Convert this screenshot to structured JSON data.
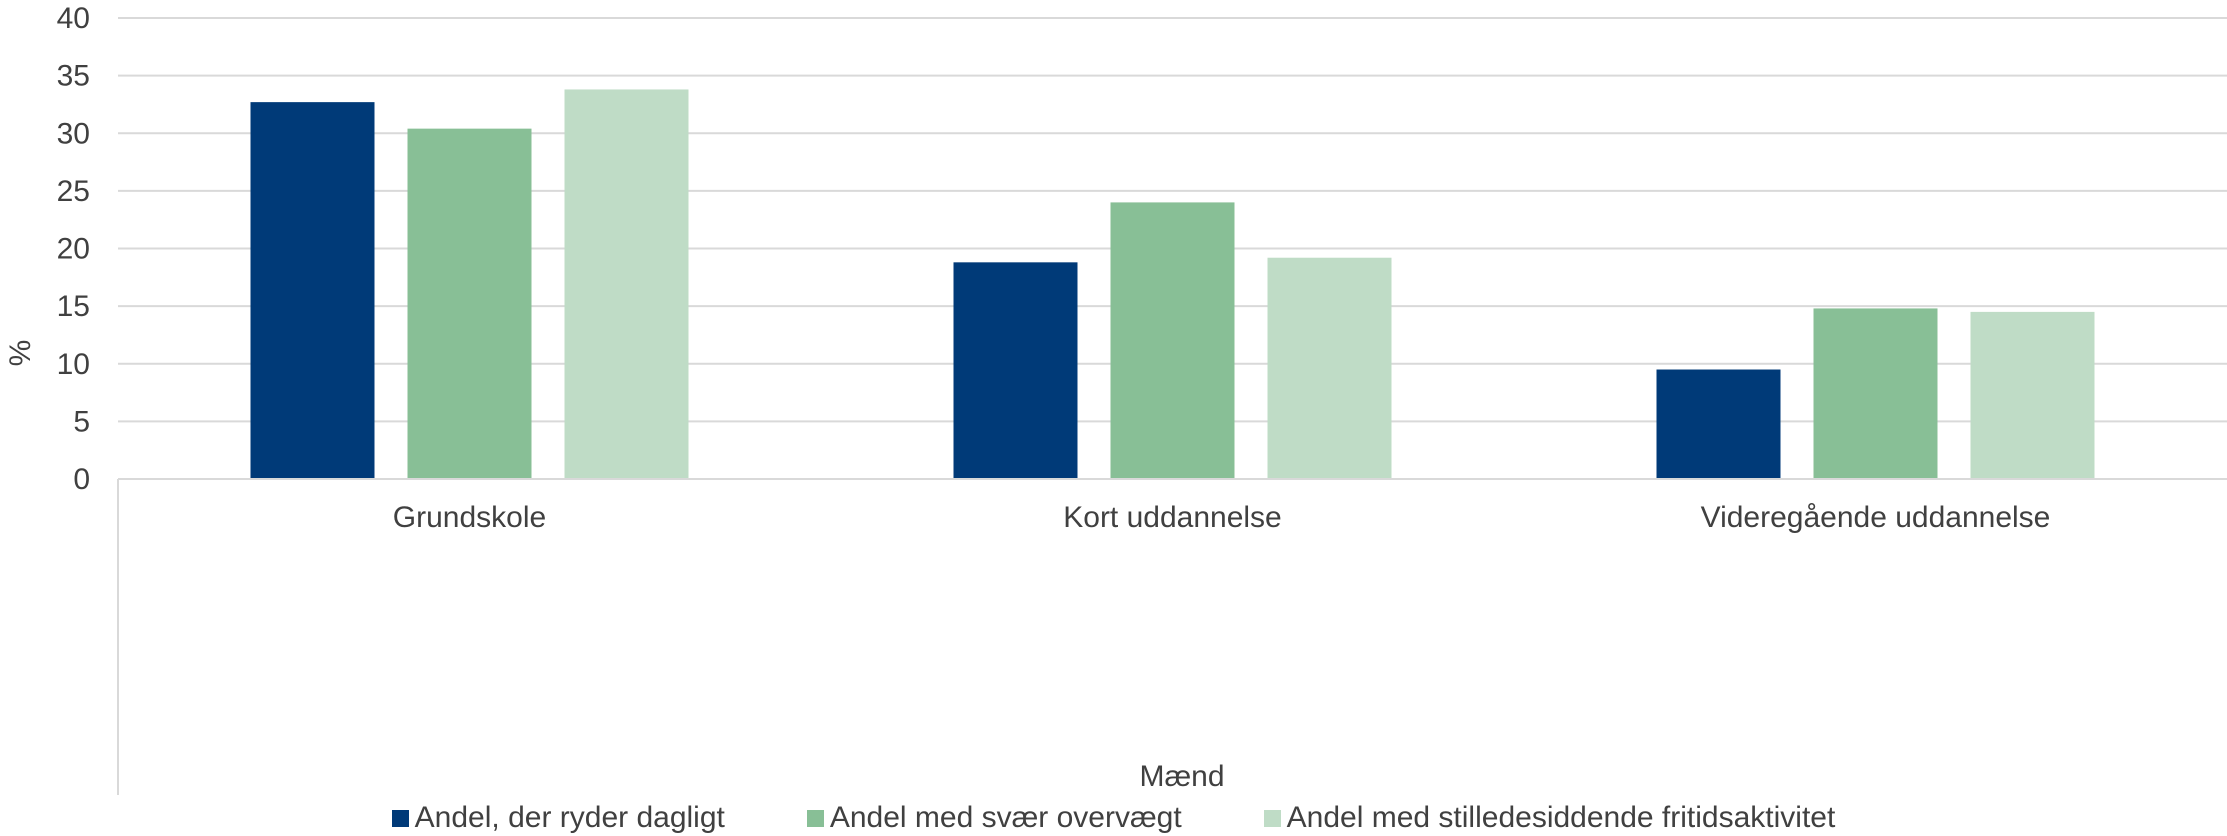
{
  "chart_data": {
    "type": "bar",
    "title": "",
    "xlabel": "Mænd",
    "ylabel": "%",
    "ylim": [
      0,
      40
    ],
    "yticks": [
      0,
      5,
      10,
      15,
      20,
      25,
      30,
      35,
      40
    ],
    "grid": true,
    "legend_position": "bottom",
    "categories": [
      "Grundskole",
      "Kort uddannelse",
      "Videregående uddannelse"
    ],
    "series": [
      {
        "name": "Andel, der ryder dagligt",
        "color": "#003a78",
        "values": [
          32.7,
          18.8,
          9.5
        ]
      },
      {
        "name": "Andel med svær overvægt",
        "color": "#88bf96",
        "values": [
          30.4,
          24.0,
          14.8
        ]
      },
      {
        "name": "Andel med stilledesiddende fritidsaktivitet",
        "color": "#bfdcc6",
        "values": [
          33.8,
          19.2,
          14.5
        ]
      }
    ]
  }
}
